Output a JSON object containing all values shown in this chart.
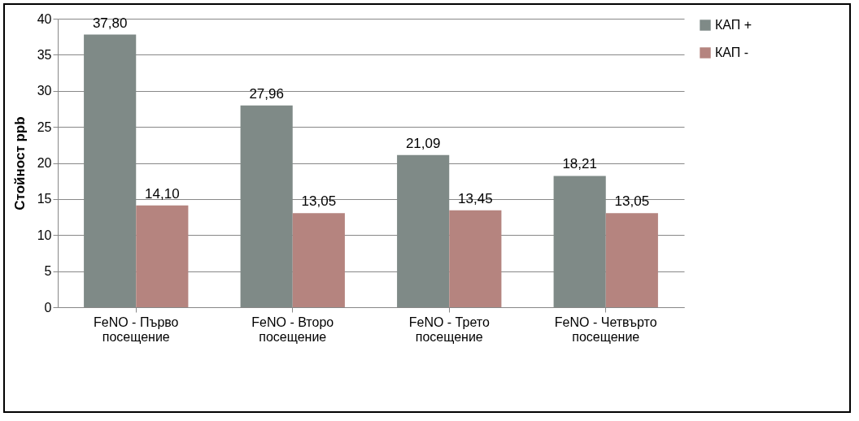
{
  "chart_data": {
    "type": "bar",
    "ylabel": "Стойност ppb",
    "categories": [
      "FeNO - Първо посещение",
      "FeNO - Второ посещение",
      "FeNO - Трето посещение",
      "FeNO - Четвърто посещение"
    ],
    "series": [
      {
        "name": "КАП +",
        "color": "#7f8a87",
        "values": [
          37.8,
          27.96,
          21.09,
          18.21
        ],
        "value_labels": [
          "37,80",
          "27,96",
          "21,09",
          "18,21"
        ]
      },
      {
        "name": "КАП -",
        "color": "#b5847f",
        "values": [
          14.1,
          13.05,
          13.45,
          13.05
        ],
        "value_labels": [
          "14,10",
          "13,05",
          "13,45",
          "13,05"
        ]
      }
    ],
    "ylim": [
      0,
      40
    ],
    "yticks": [
      0,
      5,
      10,
      15,
      20,
      25,
      30,
      35,
      40
    ],
    "grid": "y",
    "legend": "right"
  }
}
